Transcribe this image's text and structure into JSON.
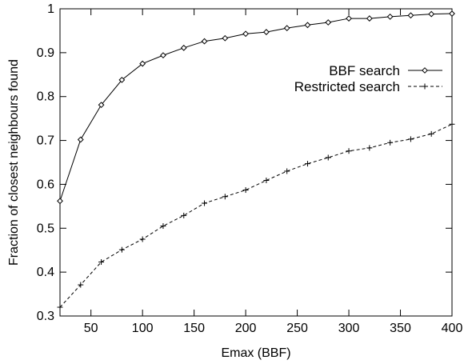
{
  "chart_data": {
    "type": "line",
    "title": "",
    "xlabel": "Emax (BBF)",
    "ylabel": "Fraction of closest neighbours found",
    "xlim": [
      20,
      400
    ],
    "ylim": [
      0.3,
      1.0
    ],
    "xticks": [
      50,
      100,
      150,
      200,
      250,
      300,
      350,
      400
    ],
    "xtick_labels": [
      "50",
      "100",
      "150",
      "200",
      "250",
      "300",
      "350",
      "400"
    ],
    "yticks": [
      0.3,
      0.4,
      0.5,
      0.6,
      0.7,
      0.8,
      0.9,
      1.0
    ],
    "ytick_labels": [
      "0.3",
      "0.4",
      "0.5",
      "0.6",
      "0.7",
      "0.8",
      "0.9",
      "1"
    ],
    "grid": false,
    "legend_position": "right",
    "series": [
      {
        "name": "BBF search",
        "line_style": "solid",
        "marker": "diamond",
        "color": "#000000",
        "x": [
          20,
          40,
          60,
          80,
          100,
          120,
          140,
          160,
          180,
          200,
          220,
          240,
          260,
          280,
          300,
          320,
          340,
          360,
          380,
          400
        ],
        "y": [
          0.562,
          0.702,
          0.781,
          0.838,
          0.875,
          0.894,
          0.911,
          0.926,
          0.933,
          0.943,
          0.947,
          0.956,
          0.963,
          0.969,
          0.978,
          0.978,
          0.982,
          0.985,
          0.988,
          0.989
        ]
      },
      {
        "name": "Restricted search",
        "line_style": "dashed",
        "marker": "plus",
        "color": "#000000",
        "x": [
          20,
          40,
          60,
          80,
          100,
          120,
          140,
          160,
          180,
          200,
          220,
          240,
          260,
          280,
          300,
          320,
          340,
          360,
          380,
          400
        ],
        "y": [
          0.32,
          0.371,
          0.423,
          0.451,
          0.475,
          0.505,
          0.529,
          0.557,
          0.572,
          0.587,
          0.609,
          0.63,
          0.647,
          0.661,
          0.676,
          0.683,
          0.695,
          0.703,
          0.715,
          0.737
        ]
      }
    ]
  }
}
